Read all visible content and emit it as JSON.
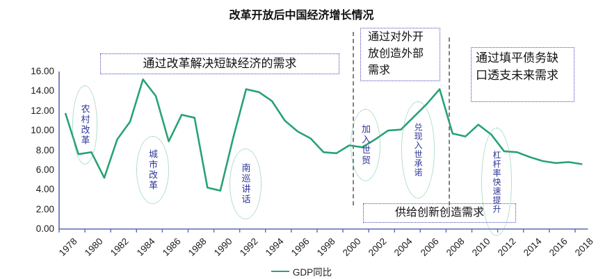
{
  "title": "改革开放后中国经济增长情况",
  "legend": {
    "label": "GDP同比"
  },
  "colors": {
    "line": "#28a274",
    "callout_ellipse_border": "#5fbd96",
    "callout_text": "#2f3699",
    "annotation_box_border": "#4545b8",
    "axis": "#5b68b3",
    "era_divider": "#7f7f7f",
    "text": "#111111"
  },
  "annotations": {
    "boxes": [
      {
        "id": "reform-demand",
        "text": "通过改革解决短缺经济的需求"
      },
      {
        "id": "opening-demand",
        "text": "通过对外开放创造外部需求"
      },
      {
        "id": "debt-demand",
        "text": "通过填平债务缺口透支未来需求"
      },
      {
        "id": "supply-demand",
        "text": "供给创新创造需求"
      }
    ],
    "callouts": [
      {
        "id": "rural-reform",
        "text": "农村改革"
      },
      {
        "id": "urban-reform",
        "text": "城市改革"
      },
      {
        "id": "southern-tour",
        "text": "南巡讲话"
      },
      {
        "id": "wto-entry",
        "text": "加入世贸"
      },
      {
        "id": "wto-commitment",
        "text": "兑现入世承诺"
      },
      {
        "id": "leverage-rise",
        "text": "杠杆率快速提升"
      }
    ]
  },
  "chart_data": {
    "type": "line",
    "title": "改革开放后中国经济增长情况",
    "xlabel": "",
    "ylabel": "",
    "x": [
      1978,
      1979,
      1980,
      1981,
      1982,
      1983,
      1984,
      1985,
      1986,
      1987,
      1988,
      1989,
      1990,
      1991,
      1992,
      1993,
      1994,
      1995,
      1996,
      1997,
      1998,
      1999,
      2000,
      2001,
      2002,
      2003,
      2004,
      2005,
      2006,
      2007,
      2008,
      2009,
      2010,
      2011,
      2012,
      2013,
      2014,
      2015,
      2016,
      2017,
      2018
    ],
    "series": [
      {
        "name": "GDP同比",
        "values": [
          11.7,
          7.6,
          7.8,
          5.2,
          9.1,
          10.9,
          15.2,
          13.5,
          8.9,
          11.6,
          11.3,
          4.2,
          3.9,
          9.3,
          14.2,
          13.9,
          13.0,
          11.0,
          9.9,
          9.2,
          7.8,
          7.7,
          8.5,
          8.3,
          9.1,
          10.0,
          10.1,
          11.4,
          12.7,
          14.2,
          9.7,
          9.4,
          10.6,
          9.6,
          7.9,
          7.8,
          7.3,
          6.9,
          6.7,
          6.8,
          6.6
        ]
      }
    ],
    "ylim": [
      0,
      16
    ],
    "ytick_step": 2,
    "ytick_format": "0.00",
    "xtick_step": 2,
    "grid": false,
    "legend_position": "bottom-center",
    "line_color": "#28a274"
  }
}
